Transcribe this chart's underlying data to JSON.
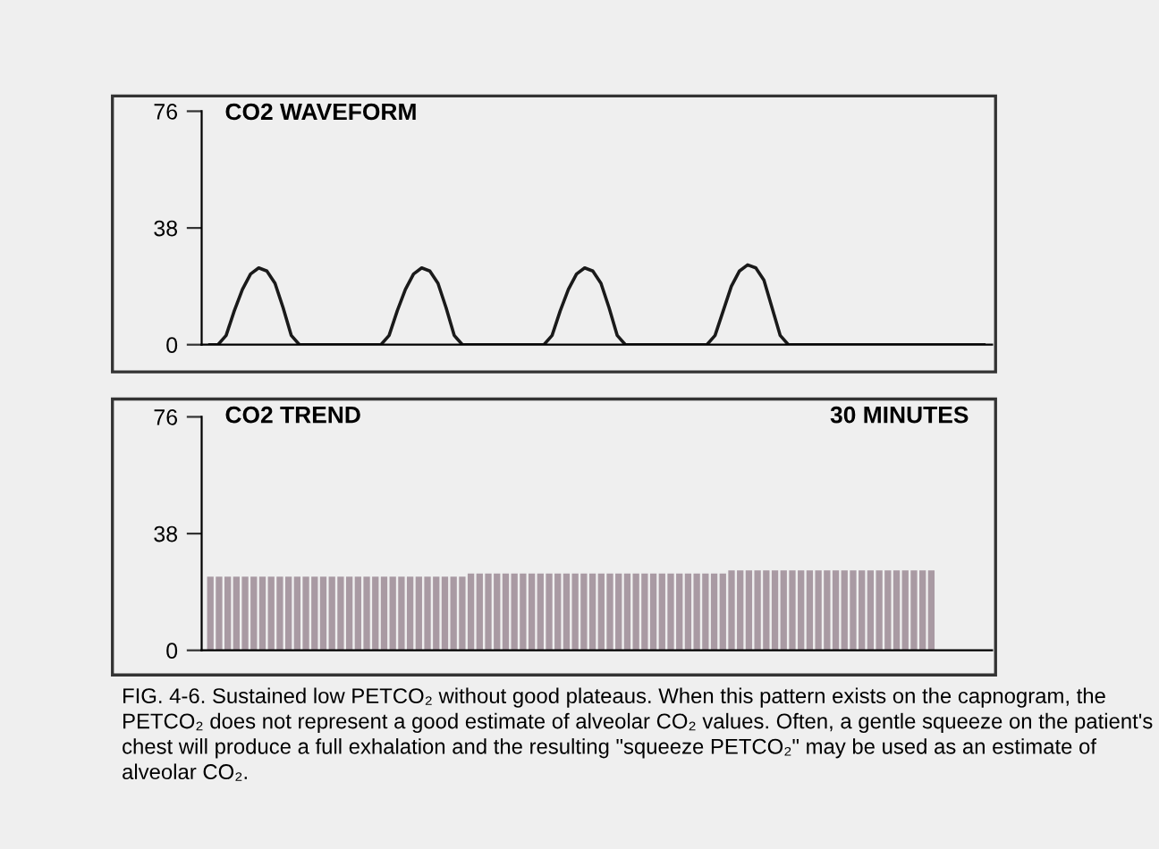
{
  "chart_data": [
    {
      "type": "line",
      "title": "CO2 WAVEFORM",
      "categories": [
        null,
        null,
        null,
        null,
        null,
        null,
        null,
        null,
        null,
        null,
        null,
        null,
        null,
        null,
        null,
        null,
        null,
        null,
        null,
        null,
        null,
        null,
        null,
        null,
        null,
        null,
        null,
        null,
        null,
        null,
        null,
        null,
        null,
        null,
        null,
        null,
        null,
        null,
        null,
        null,
        null,
        null,
        null,
        null,
        null,
        null,
        null,
        null,
        null,
        null,
        null,
        null,
        null,
        null,
        null,
        null,
        null,
        null,
        null,
        null,
        null,
        null,
        null,
        null,
        null,
        null,
        null,
        null,
        null,
        null,
        null,
        null,
        null,
        null,
        null,
        null,
        null,
        null,
        null,
        null,
        null,
        null,
        null,
        null,
        null,
        null,
        null,
        null,
        null,
        null,
        null,
        null,
        null,
        null,
        null,
        null
      ],
      "series": [
        {
          "color": "#1a1a1a",
          "values": [
            0,
            0,
            3,
            11,
            18,
            23,
            25,
            24,
            20,
            12,
            3,
            0,
            0,
            0,
            0,
            0,
            0,
            0,
            0,
            0,
            0,
            0,
            3,
            11,
            18,
            23,
            25,
            24,
            20,
            12,
            3,
            0,
            0,
            0,
            0,
            0,
            0,
            0,
            0,
            0,
            0,
            0,
            3,
            11,
            18,
            23,
            25,
            24,
            20,
            12,
            3,
            0,
            0,
            0,
            0,
            0,
            0,
            0,
            0,
            0,
            0,
            0,
            3,
            11,
            19,
            24,
            26,
            25,
            21,
            12,
            3,
            0,
            0,
            0,
            0,
            0,
            0,
            0,
            0,
            0,
            0,
            0,
            0,
            0,
            0,
            0,
            0,
            0,
            0,
            0,
            0,
            0,
            0,
            0,
            0,
            0
          ]
        }
      ],
      "ylim": [
        0,
        76
      ],
      "yticks": [
        0,
        38,
        76
      ],
      "marker": "none",
      "line_style": "solid",
      "grid": false,
      "legend": false,
      "tick_labels": "y"
    },
    {
      "type": "bar",
      "title": "CO2 TREND",
      "categories": [
        null,
        null,
        null,
        null,
        null,
        null,
        null,
        null,
        null,
        null,
        null,
        null,
        null,
        null,
        null,
        null,
        null,
        null,
        null,
        null,
        null,
        null,
        null,
        null,
        null,
        null,
        null,
        null,
        null,
        null,
        null,
        null,
        null,
        null,
        null,
        null,
        null,
        null,
        null,
        null,
        null,
        null,
        null,
        null,
        null,
        null,
        null,
        null,
        null,
        null,
        null,
        null,
        null,
        null,
        null,
        null,
        null,
        null,
        null,
        null,
        null,
        null,
        null,
        null,
        null,
        null,
        null,
        null,
        null,
        null,
        null,
        null,
        null,
        null,
        null,
        null,
        null,
        null,
        null,
        null,
        null,
        null,
        null,
        null,
        null,
        null,
        null,
        null,
        null,
        null
      ],
      "series": [
        {
          "color": "#a99aa3",
          "values": [
            24,
            24,
            24,
            24,
            24,
            24,
            24,
            24,
            24,
            24,
            24,
            24,
            24,
            24,
            24,
            24,
            24,
            24,
            24,
            24,
            24,
            24,
            24,
            24,
            24,
            24,
            24,
            24,
            24,
            24,
            25,
            25,
            25,
            25,
            25,
            25,
            25,
            25,
            25,
            25,
            25,
            25,
            25,
            25,
            25,
            25,
            25,
            25,
            25,
            25,
            25,
            25,
            25,
            25,
            25,
            25,
            25,
            25,
            25,
            25,
            26,
            26,
            26,
            26,
            26,
            26,
            26,
            26,
            26,
            26,
            26,
            26,
            26,
            26,
            26,
            26,
            26,
            26,
            26,
            26,
            26,
            26,
            26,
            26,
            null,
            null,
            null,
            null,
            null,
            null
          ]
        }
      ],
      "ylim": [
        0,
        76
      ],
      "yticks": [
        0,
        38,
        76
      ],
      "grid": false,
      "legend": false,
      "tick_labels": "y",
      "annotations": [
        "30 MINUTES",
        "FIG. 4-6. Sustained low PETCO₂ without good plateaus. When this pattern exists on the capnogram, the PETCO₂ does not represent a good estimate of alveolar CO₂ values. Often, a gentle squeeze on the patient's chest will produce a full exhalation and the resulting \"squeeze PETCO₂\" may be used as an estimate of alveolar CO₂."
      ]
    }
  ]
}
